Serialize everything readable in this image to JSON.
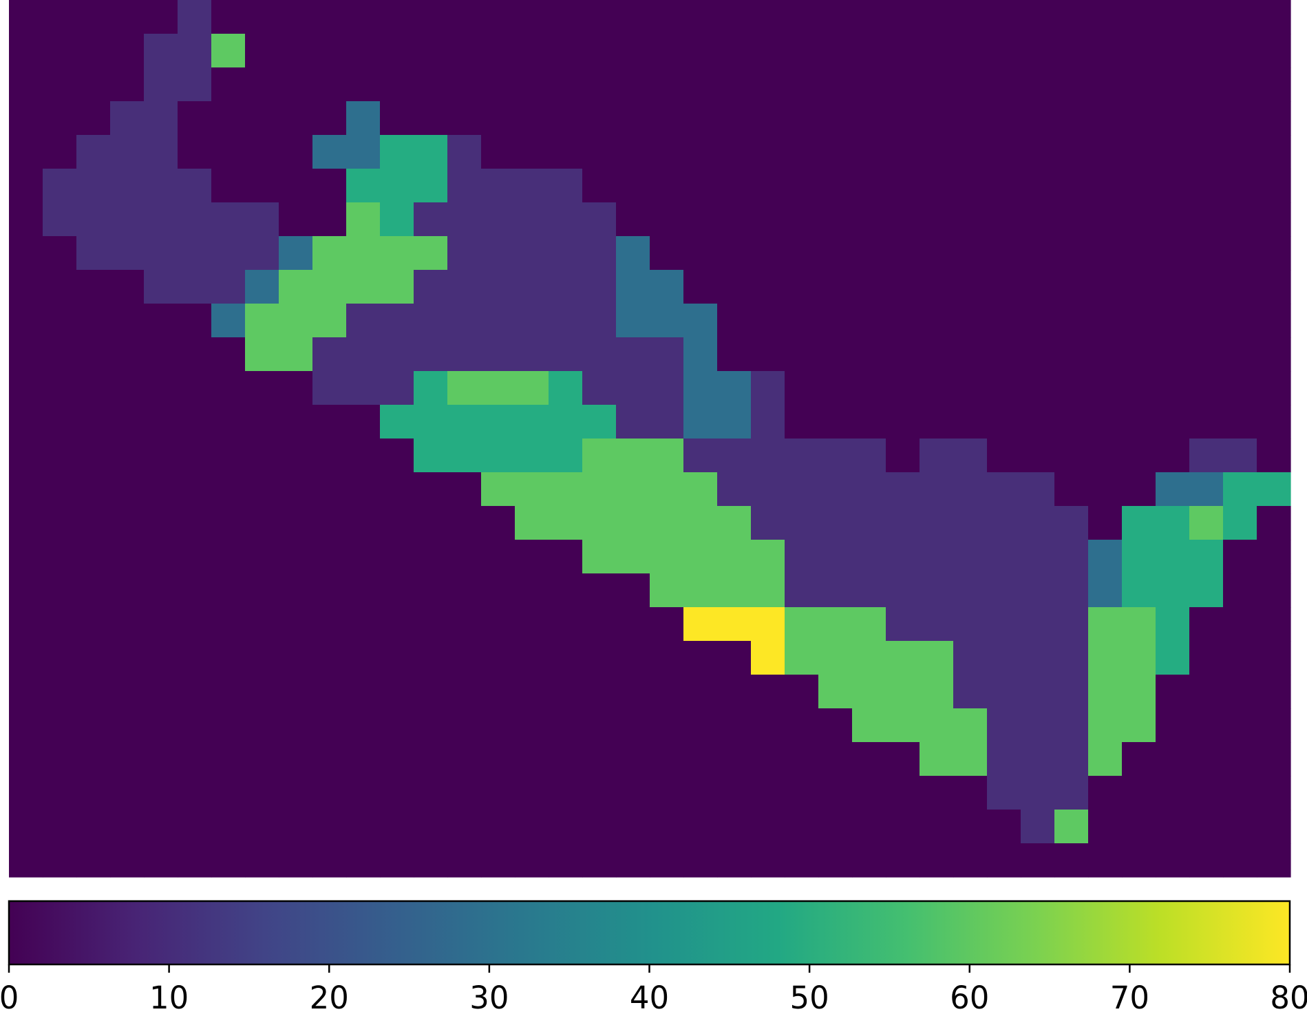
{
  "chart_data": {
    "type": "heatmap",
    "colormap": "viridis",
    "cmap_colors": {
      "0": "#440154",
      "13": "#482f79",
      "30": "#2e6f8e",
      "50": "#25ad82",
      "60": "#5ec962",
      "80": "#fde725"
    },
    "colorbar": {
      "orientation": "horizontal",
      "range": [
        0,
        80
      ],
      "ticks": [
        0,
        10,
        20,
        30,
        40,
        50,
        60,
        70,
        80
      ],
      "tick_labels": [
        "0",
        "10",
        "20",
        "30",
        "40",
        "50",
        "60",
        "70",
        "80"
      ]
    },
    "grid_shape": [
      26,
      38
    ],
    "values": [
      [
        0,
        0,
        0,
        0,
        0,
        13,
        0,
        0,
        0,
        0,
        0,
        0,
        0,
        0,
        0,
        0,
        0,
        0,
        0,
        0,
        0,
        0,
        0,
        0,
        0,
        0,
        0,
        0,
        0,
        0,
        0,
        0,
        0,
        0,
        0,
        0,
        0,
        0
      ],
      [
        0,
        0,
        0,
        0,
        13,
        13,
        60,
        0,
        0,
        0,
        0,
        0,
        0,
        0,
        0,
        0,
        0,
        0,
        0,
        0,
        0,
        0,
        0,
        0,
        0,
        0,
        0,
        0,
        0,
        0,
        0,
        0,
        0,
        0,
        0,
        0,
        0,
        0
      ],
      [
        0,
        0,
        0,
        0,
        13,
        13,
        0,
        0,
        0,
        0,
        0,
        0,
        0,
        0,
        0,
        0,
        0,
        0,
        0,
        0,
        0,
        0,
        0,
        0,
        0,
        0,
        0,
        0,
        0,
        0,
        0,
        0,
        0,
        0,
        0,
        0,
        0,
        0
      ],
      [
        0,
        0,
        0,
        13,
        13,
        0,
        0,
        0,
        0,
        0,
        30,
        0,
        0,
        0,
        0,
        0,
        0,
        0,
        0,
        0,
        0,
        0,
        0,
        0,
        0,
        0,
        0,
        0,
        0,
        0,
        0,
        0,
        0,
        0,
        0,
        0,
        0,
        0
      ],
      [
        0,
        0,
        13,
        13,
        13,
        0,
        0,
        0,
        0,
        30,
        30,
        50,
        50,
        13,
        0,
        0,
        0,
        0,
        0,
        0,
        0,
        0,
        0,
        0,
        0,
        0,
        0,
        0,
        0,
        0,
        0,
        0,
        0,
        0,
        0,
        0,
        0,
        0
      ],
      [
        0,
        13,
        13,
        13,
        13,
        13,
        0,
        0,
        0,
        0,
        50,
        50,
        50,
        13,
        13,
        13,
        13,
        0,
        0,
        0,
        0,
        0,
        0,
        0,
        0,
        0,
        0,
        0,
        0,
        0,
        0,
        0,
        0,
        0,
        0,
        0,
        0,
        0
      ],
      [
        0,
        13,
        13,
        13,
        13,
        13,
        13,
        13,
        0,
        0,
        60,
        50,
        13,
        13,
        13,
        13,
        13,
        13,
        0,
        0,
        0,
        0,
        0,
        0,
        0,
        0,
        0,
        0,
        0,
        0,
        0,
        0,
        0,
        0,
        0,
        0,
        0,
        0
      ],
      [
        0,
        0,
        13,
        13,
        13,
        13,
        13,
        13,
        30,
        60,
        60,
        60,
        60,
        13,
        13,
        13,
        13,
        13,
        30,
        0,
        0,
        0,
        0,
        0,
        0,
        0,
        0,
        0,
        0,
        0,
        0,
        0,
        0,
        0,
        0,
        0,
        0,
        0
      ],
      [
        0,
        0,
        0,
        0,
        13,
        13,
        13,
        30,
        60,
        60,
        60,
        60,
        13,
        13,
        13,
        13,
        13,
        13,
        30,
        30,
        0,
        0,
        0,
        0,
        0,
        0,
        0,
        0,
        0,
        0,
        0,
        0,
        0,
        0,
        0,
        0,
        0,
        0
      ],
      [
        0,
        0,
        0,
        0,
        0,
        0,
        30,
        60,
        60,
        60,
        13,
        13,
        13,
        13,
        13,
        13,
        13,
        13,
        30,
        30,
        30,
        0,
        0,
        0,
        0,
        0,
        0,
        0,
        0,
        0,
        0,
        0,
        0,
        0,
        0,
        0,
        0,
        0
      ],
      [
        0,
        0,
        0,
        0,
        0,
        0,
        0,
        60,
        60,
        13,
        13,
        13,
        13,
        13,
        13,
        13,
        13,
        13,
        13,
        13,
        30,
        0,
        0,
        0,
        0,
        0,
        0,
        0,
        0,
        0,
        0,
        0,
        0,
        0,
        0,
        0,
        0,
        0
      ],
      [
        0,
        0,
        0,
        0,
        0,
        0,
        0,
        0,
        0,
        13,
        13,
        13,
        50,
        60,
        60,
        60,
        50,
        13,
        13,
        13,
        30,
        30,
        13,
        0,
        0,
        0,
        0,
        0,
        0,
        0,
        0,
        0,
        0,
        0,
        0,
        0,
        0,
        0
      ],
      [
        0,
        0,
        0,
        0,
        0,
        0,
        0,
        0,
        0,
        0,
        0,
        50,
        50,
        50,
        50,
        50,
        50,
        50,
        13,
        13,
        30,
        30,
        13,
        0,
        0,
        0,
        0,
        0,
        0,
        0,
        0,
        0,
        0,
        0,
        0,
        0,
        0,
        0
      ],
      [
        0,
        0,
        0,
        0,
        0,
        0,
        0,
        0,
        0,
        0,
        0,
        0,
        50,
        50,
        50,
        50,
        50,
        60,
        60,
        60,
        13,
        13,
        13,
        13,
        13,
        13,
        0,
        13,
        13,
        0,
        0,
        0,
        0,
        0,
        0,
        13,
        13,
        0
      ],
      [
        0,
        0,
        0,
        0,
        0,
        0,
        0,
        0,
        0,
        0,
        0,
        0,
        0,
        0,
        60,
        60,
        60,
        60,
        60,
        60,
        60,
        13,
        13,
        13,
        13,
        13,
        13,
        13,
        13,
        13,
        13,
        0,
        0,
        0,
        30,
        30,
        50,
        50
      ],
      [
        0,
        0,
        0,
        0,
        0,
        0,
        0,
        0,
        0,
        0,
        0,
        0,
        0,
        0,
        0,
        60,
        60,
        60,
        60,
        60,
        60,
        60,
        13,
        13,
        13,
        13,
        13,
        13,
        13,
        13,
        13,
        13,
        0,
        50,
        50,
        60,
        50,
        0
      ],
      [
        0,
        0,
        0,
        0,
        0,
        0,
        0,
        0,
        0,
        0,
        0,
        0,
        0,
        0,
        0,
        0,
        0,
        60,
        60,
        60,
        60,
        60,
        60,
        13,
        13,
        13,
        13,
        13,
        13,
        13,
        13,
        13,
        30,
        50,
        50,
        50,
        0,
        0
      ],
      [
        0,
        0,
        0,
        0,
        0,
        0,
        0,
        0,
        0,
        0,
        0,
        0,
        0,
        0,
        0,
        0,
        0,
        0,
        0,
        60,
        60,
        60,
        60,
        13,
        13,
        13,
        13,
        13,
        13,
        13,
        13,
        13,
        30,
        50,
        50,
        50,
        0,
        0
      ],
      [
        0,
        0,
        0,
        0,
        0,
        0,
        0,
        0,
        0,
        0,
        0,
        0,
        0,
        0,
        0,
        0,
        0,
        0,
        0,
        0,
        80,
        80,
        80,
        60,
        60,
        60,
        13,
        13,
        13,
        13,
        13,
        13,
        60,
        60,
        50,
        0,
        0,
        0
      ],
      [
        0,
        0,
        0,
        0,
        0,
        0,
        0,
        0,
        0,
        0,
        0,
        0,
        0,
        0,
        0,
        0,
        0,
        0,
        0,
        0,
        0,
        0,
        80,
        60,
        60,
        60,
        60,
        60,
        13,
        13,
        13,
        13,
        60,
        60,
        50,
        0,
        0,
        0
      ],
      [
        0,
        0,
        0,
        0,
        0,
        0,
        0,
        0,
        0,
        0,
        0,
        0,
        0,
        0,
        0,
        0,
        0,
        0,
        0,
        0,
        0,
        0,
        0,
        0,
        60,
        60,
        60,
        60,
        13,
        13,
        13,
        13,
        60,
        60,
        0,
        0,
        0,
        0
      ],
      [
        0,
        0,
        0,
        0,
        0,
        0,
        0,
        0,
        0,
        0,
        0,
        0,
        0,
        0,
        0,
        0,
        0,
        0,
        0,
        0,
        0,
        0,
        0,
        0,
        0,
        60,
        60,
        60,
        60,
        13,
        13,
        13,
        60,
        60,
        0,
        0,
        0,
        0
      ],
      [
        0,
        0,
        0,
        0,
        0,
        0,
        0,
        0,
        0,
        0,
        0,
        0,
        0,
        0,
        0,
        0,
        0,
        0,
        0,
        0,
        0,
        0,
        0,
        0,
        0,
        0,
        0,
        60,
        60,
        13,
        13,
        13,
        60,
        0,
        0,
        0,
        0,
        0
      ],
      [
        0,
        0,
        0,
        0,
        0,
        0,
        0,
        0,
        0,
        0,
        0,
        0,
        0,
        0,
        0,
        0,
        0,
        0,
        0,
        0,
        0,
        0,
        0,
        0,
        0,
        0,
        0,
        0,
        0,
        13,
        13,
        13,
        0,
        0,
        0,
        0,
        0,
        0
      ],
      [
        0,
        0,
        0,
        0,
        0,
        0,
        0,
        0,
        0,
        0,
        0,
        0,
        0,
        0,
        0,
        0,
        0,
        0,
        0,
        0,
        0,
        0,
        0,
        0,
        0,
        0,
        0,
        0,
        0,
        0,
        13,
        60,
        0,
        0,
        0,
        0,
        0,
        0
      ],
      [
        0,
        0,
        0,
        0,
        0,
        0,
        0,
        0,
        0,
        0,
        0,
        0,
        0,
        0,
        0,
        0,
        0,
        0,
        0,
        0,
        0,
        0,
        0,
        0,
        0,
        0,
        0,
        0,
        0,
        0,
        0,
        0,
        0,
        0,
        0,
        0,
        0,
        0
      ]
    ]
  }
}
